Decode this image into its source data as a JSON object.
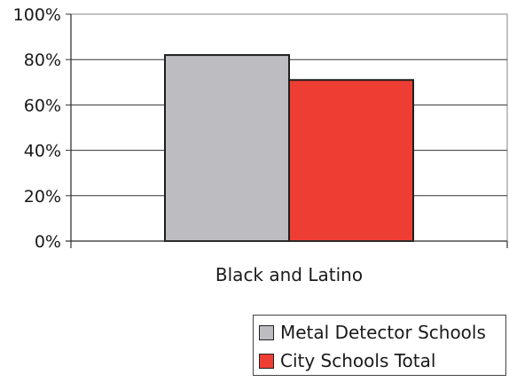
{
  "chart_data": {
    "type": "bar",
    "categories": [
      "Black and Latino"
    ],
    "series": [
      {
        "name": "Metal Detector Schools",
        "values": [
          82
        ],
        "color": "#bdbdc1"
      },
      {
        "name": "City Schools Total",
        "values": [
          71
        ],
        "color": "#ee3e33"
      }
    ],
    "ylim": [
      0,
      100
    ],
    "yticks": [
      0,
      20,
      40,
      60,
      80,
      100
    ],
    "ytick_labels": [
      "0%",
      "20%",
      "40%",
      "60%",
      "80%",
      "100%"
    ],
    "grid": true,
    "legend_position": "bottom-right"
  }
}
